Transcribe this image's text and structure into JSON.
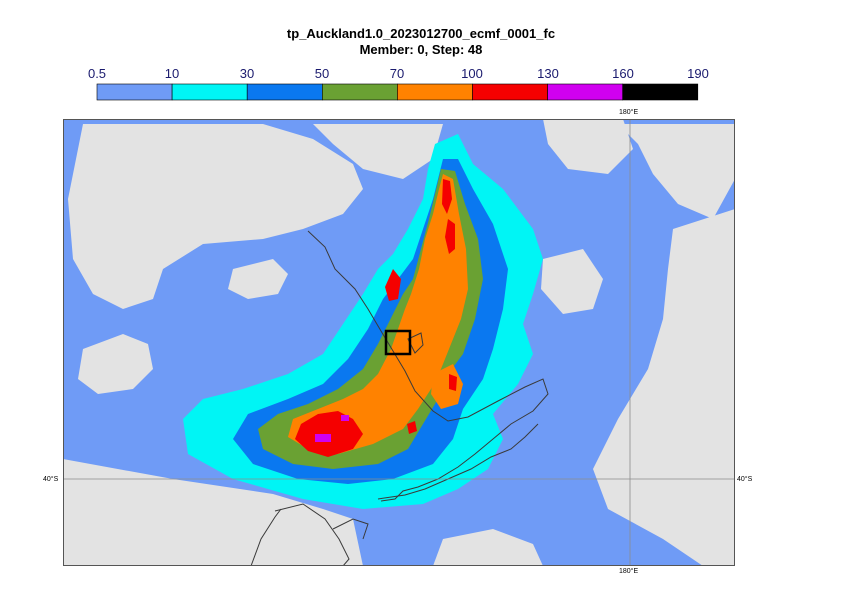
{
  "title": {
    "line1": "tp_Auckland1.0_2023012700_ecmf_0001_fc",
    "line2": "Member: 0, Step: 48"
  },
  "legend": {
    "labels": [
      "0.5",
      "10",
      "30",
      "50",
      "70",
      "100",
      "130",
      "160",
      "190"
    ],
    "colors": [
      "#6f9bf6",
      "#00f5f5",
      "#0a78f0",
      "#6aa133",
      "#ff8200",
      "#f50000",
      "#d000f0",
      "#000000"
    ]
  },
  "colors": {
    "land": "#e3e3e3",
    "outside": "#ffffff"
  },
  "map": {
    "lon_tick": "180°E",
    "lat_tick": "40°S"
  }
}
